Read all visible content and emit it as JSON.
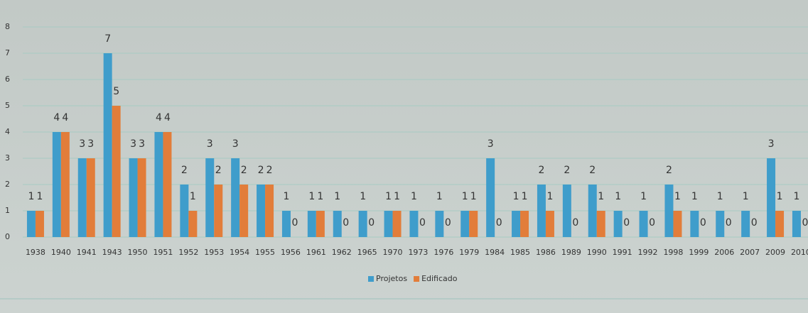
{
  "chart_data": {
    "type": "bar",
    "categories": [
      "1938",
      "1940",
      "1941",
      "1943",
      "1950",
      "1951",
      "1952",
      "1953",
      "1954",
      "1955",
      "1956",
      "1961",
      "1962",
      "1965",
      "1970",
      "1973",
      "1976",
      "1979",
      "1984",
      "1985",
      "1986",
      "1989",
      "1990",
      "1991",
      "1992",
      "1998",
      "1999",
      "2006",
      "2007",
      "2009",
      "2010"
    ],
    "series": [
      {
        "name": "Projetos",
        "color": "#3f9dcb",
        "values": [
          1,
          4,
          3,
          7,
          3,
          4,
          2,
          3,
          3,
          2,
          1,
          1,
          1,
          1,
          1,
          1,
          1,
          1,
          3,
          1,
          2,
          2,
          2,
          1,
          1,
          2,
          1,
          1,
          1,
          3,
          1
        ]
      },
      {
        "name": "Edificado",
        "color": "#e27d3a",
        "values": [
          1,
          4,
          3,
          5,
          3,
          4,
          1,
          2,
          2,
          2,
          0,
          1,
          0,
          0,
          1,
          0,
          0,
          1,
          0,
          1,
          1,
          0,
          1,
          0,
          0,
          1,
          0,
          0,
          0,
          1,
          0
        ]
      }
    ],
    "ylim": [
      0,
      8
    ],
    "yticks": [
      0,
      1,
      2,
      3,
      4,
      5,
      6,
      7,
      8
    ],
    "grid": true,
    "legend": "bottom"
  }
}
